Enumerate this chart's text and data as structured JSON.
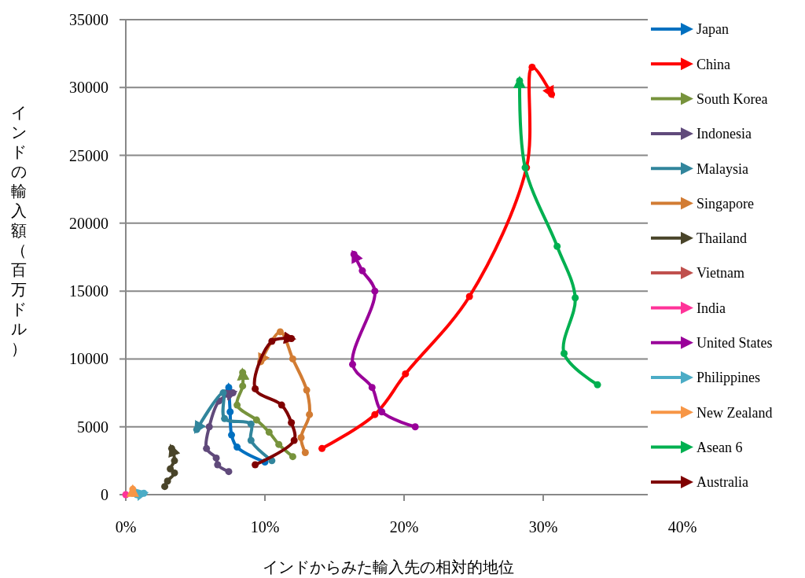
{
  "chart_data": {
    "type": "line",
    "xlabel": "インドからみた輸入先の相対的地位",
    "ylabel": "インドの輸入額（百万ドル）",
    "xlim": [
      0,
      40
    ],
    "ylim": [
      0,
      35000
    ],
    "xticks": [
      {
        "value": 0,
        "label": "0%"
      },
      {
        "value": 10,
        "label": "10%"
      },
      {
        "value": 20,
        "label": "20%"
      },
      {
        "value": 30,
        "label": "30%"
      },
      {
        "value": 40,
        "label": "40%"
      }
    ],
    "yticks": [
      0,
      5000,
      10000,
      15000,
      20000,
      25000,
      30000,
      35000
    ],
    "grid": "y",
    "legend": "right",
    "marker": "circle",
    "line_style": "solid",
    "series": [
      {
        "name": "Japan",
        "color": "#0070c0",
        "x": [
          10.0,
          8.0,
          7.6,
          7.5,
          7.4
        ],
        "values": [
          2400,
          3500,
          4400,
          6100,
          7900
        ]
      },
      {
        "name": "China",
        "color": "#ff0000",
        "x": [
          14.1,
          17.9,
          20.1,
          24.7,
          28.8,
          29.2,
          30.6
        ],
        "values": [
          3400,
          5900,
          8900,
          14600,
          24100,
          31500,
          29500
        ]
      },
      {
        "name": "South Korea",
        "color": "#77933c",
        "x": [
          12.0,
          11.0,
          10.3,
          9.4,
          8.0,
          8.4,
          8.4
        ],
        "values": [
          2800,
          3700,
          4600,
          5500,
          6600,
          8000,
          9000
        ]
      },
      {
        "name": "Indonesia",
        "color": "#604a7b",
        "x": [
          7.4,
          6.6,
          6.5,
          5.8,
          6.0,
          6.7,
          7.7
        ],
        "values": [
          1700,
          2200,
          2700,
          3400,
          5000,
          6900,
          7500
        ]
      },
      {
        "name": "Malaysia",
        "color": "#31859c",
        "x": [
          10.5,
          9.0,
          9.0,
          7.1,
          7.0,
          5.1
        ],
        "values": [
          2500,
          4000,
          5200,
          5600,
          7500,
          4800
        ]
      },
      {
        "name": "Singapore",
        "color": "#d27c33",
        "x": [
          12.9,
          12.6,
          13.2,
          13.0,
          12.0,
          11.1,
          9.7
        ],
        "values": [
          3100,
          4200,
          5900,
          7700,
          10000,
          12000,
          9800
        ]
      },
      {
        "name": "Thailand",
        "color": "#494429",
        "x": [
          2.8,
          3.0,
          3.5,
          3.2,
          3.5,
          3.3
        ],
        "values": [
          600,
          1000,
          1600,
          1900,
          2500,
          3400
        ]
      },
      {
        "name": "Vietnam",
        "color": "#c0504d",
        "values": [
          null
        ]
      },
      {
        "name": "India",
        "color": "#ff3399",
        "x": [
          0
        ],
        "values": [
          0
        ]
      },
      {
        "name": "United States",
        "color": "#990099",
        "x": [
          20.8,
          18.4,
          17.7,
          16.3,
          17.9,
          17.0,
          16.4
        ],
        "values": [
          5000,
          6100,
          7900,
          9600,
          15000,
          16500,
          17700
        ]
      },
      {
        "name": "Philippines",
        "color": "#4bacc6",
        "x": [
          0.8,
          1.3
        ],
        "values": [
          0,
          100
        ]
      },
      {
        "name": "New Zealand",
        "color": "#f79646",
        "x": [
          0.5,
          0.5
        ],
        "values": [
          100,
          400
        ]
      },
      {
        "name": "Asean 6",
        "color": "#00b050",
        "x": [
          33.9,
          31.5,
          32.3,
          31.0,
          28.7,
          28.3
        ],
        "values": [
          8100,
          10400,
          14500,
          18300,
          24100,
          30500
        ]
      },
      {
        "name": "Australia",
        "color": "#7f0000",
        "x": [
          9.3,
          12.1,
          11.9,
          11.2,
          9.3,
          10.5,
          11.9
        ],
        "values": [
          2200,
          4000,
          5300,
          6600,
          7800,
          11300,
          11500
        ]
      }
    ]
  }
}
